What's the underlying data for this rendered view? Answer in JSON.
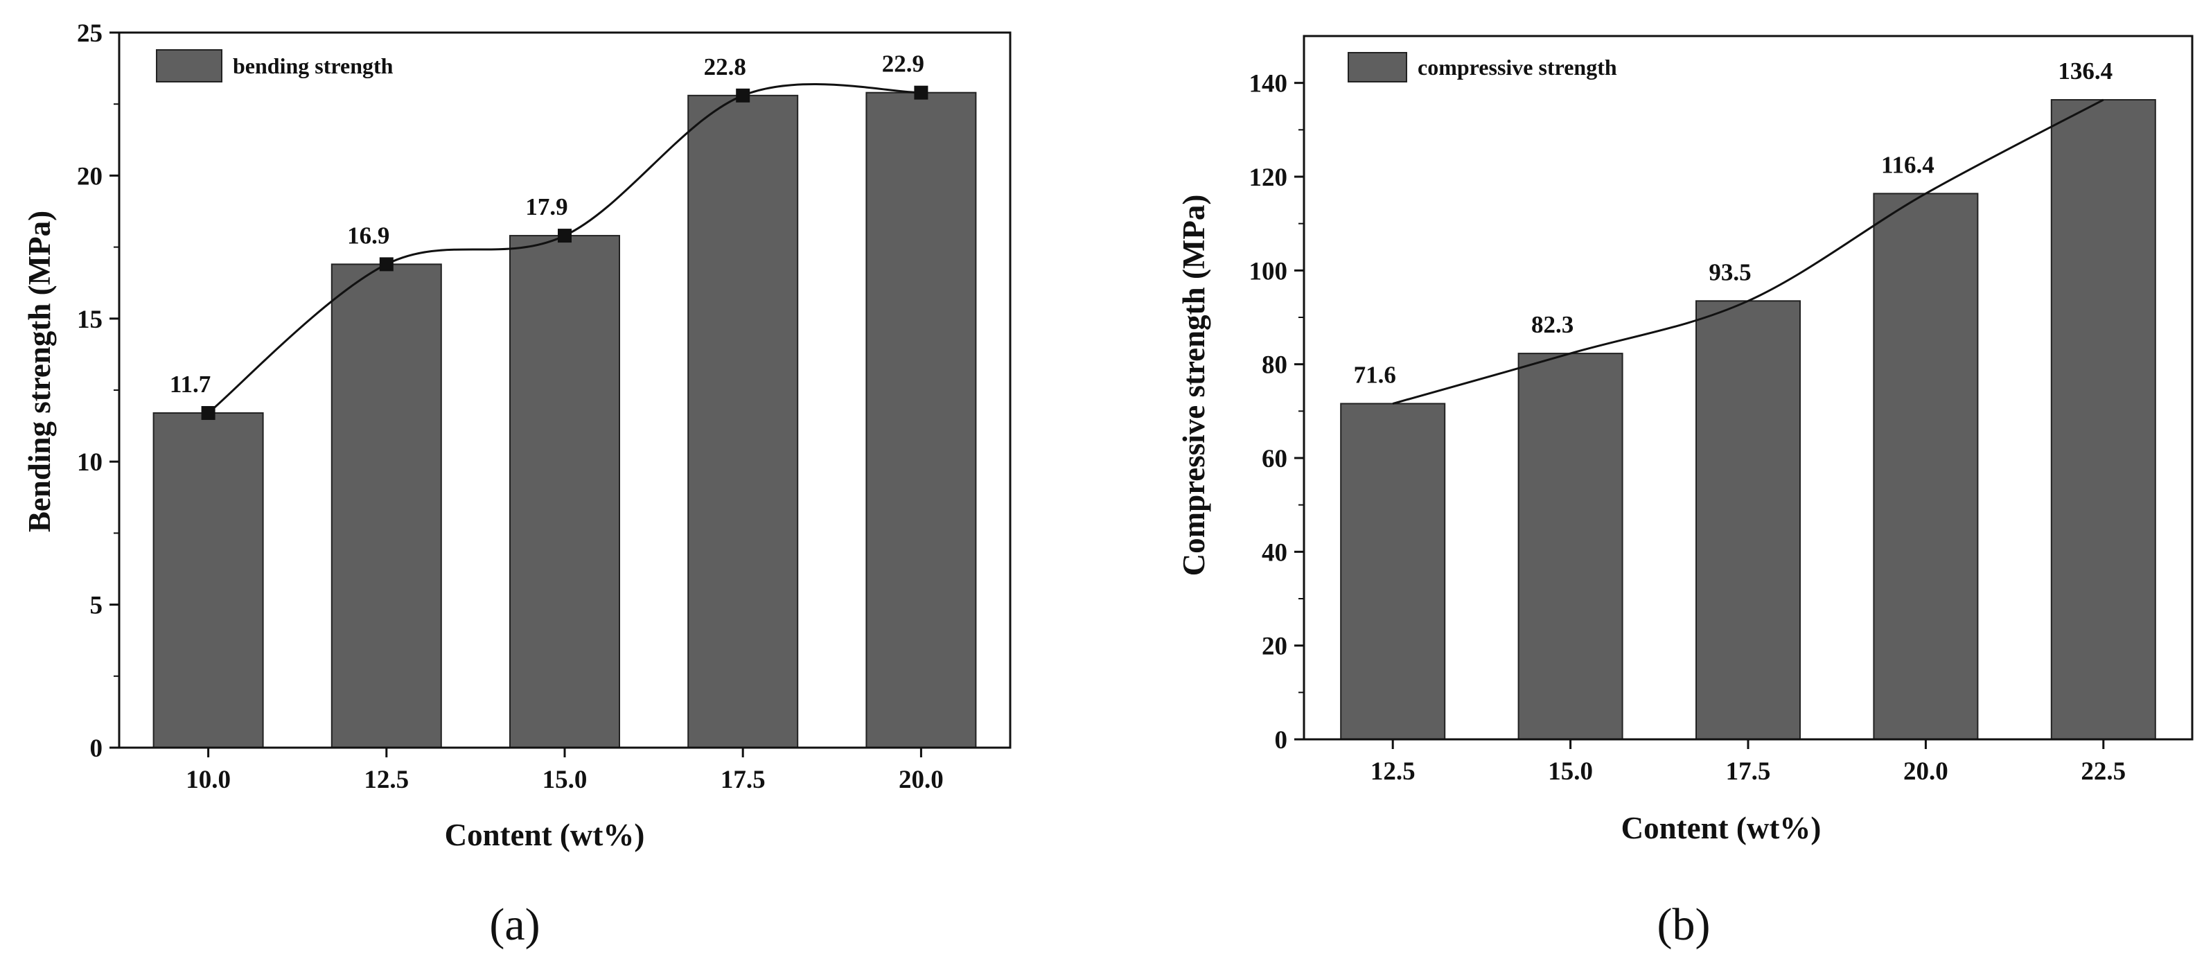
{
  "chart_data": [
    {
      "type": "bar",
      "panel_label": "(a)",
      "categories": [
        "10.0",
        "12.5",
        "15.0",
        "17.5",
        "20.0"
      ],
      "values": [
        11.7,
        16.9,
        17.9,
        22.8,
        22.9
      ],
      "data_labels": [
        "11.7",
        "16.9",
        "17.9",
        "22.8",
        "22.9"
      ],
      "title": "",
      "xlabel": "Content (wt%)",
      "ylabel": "Bending strength (MPa)",
      "ylim": [
        0,
        25
      ],
      "yticks": [
        0,
        5,
        10,
        15,
        20,
        25
      ],
      "legend": [
        "bending strength"
      ],
      "legend_position": "top-left",
      "trend_line": "smooth curve through bar tops with square markers",
      "bar_color": "#5f5f5f",
      "grid": false
    },
    {
      "type": "bar",
      "panel_label": "(b)",
      "categories": [
        "12.5",
        "15.0",
        "17.5",
        "20.0",
        "22.5"
      ],
      "values": [
        71.6,
        82.3,
        93.5,
        116.4,
        136.4
      ],
      "data_labels": [
        "71.6",
        "82.3",
        "93.5",
        "116.4",
        "136.4"
      ],
      "title": "",
      "xlabel": "Content (wt%)",
      "ylabel": "Compressive strength (MPa)",
      "ylim": [
        0,
        150
      ],
      "yticks": [
        0,
        20,
        40,
        60,
        80,
        100,
        120,
        140
      ],
      "legend": [
        "compressive strength"
      ],
      "legend_position": "top-left",
      "trend_line": "smooth curve through bar tops",
      "bar_color": "#5f5f5f",
      "grid": false
    }
  ]
}
